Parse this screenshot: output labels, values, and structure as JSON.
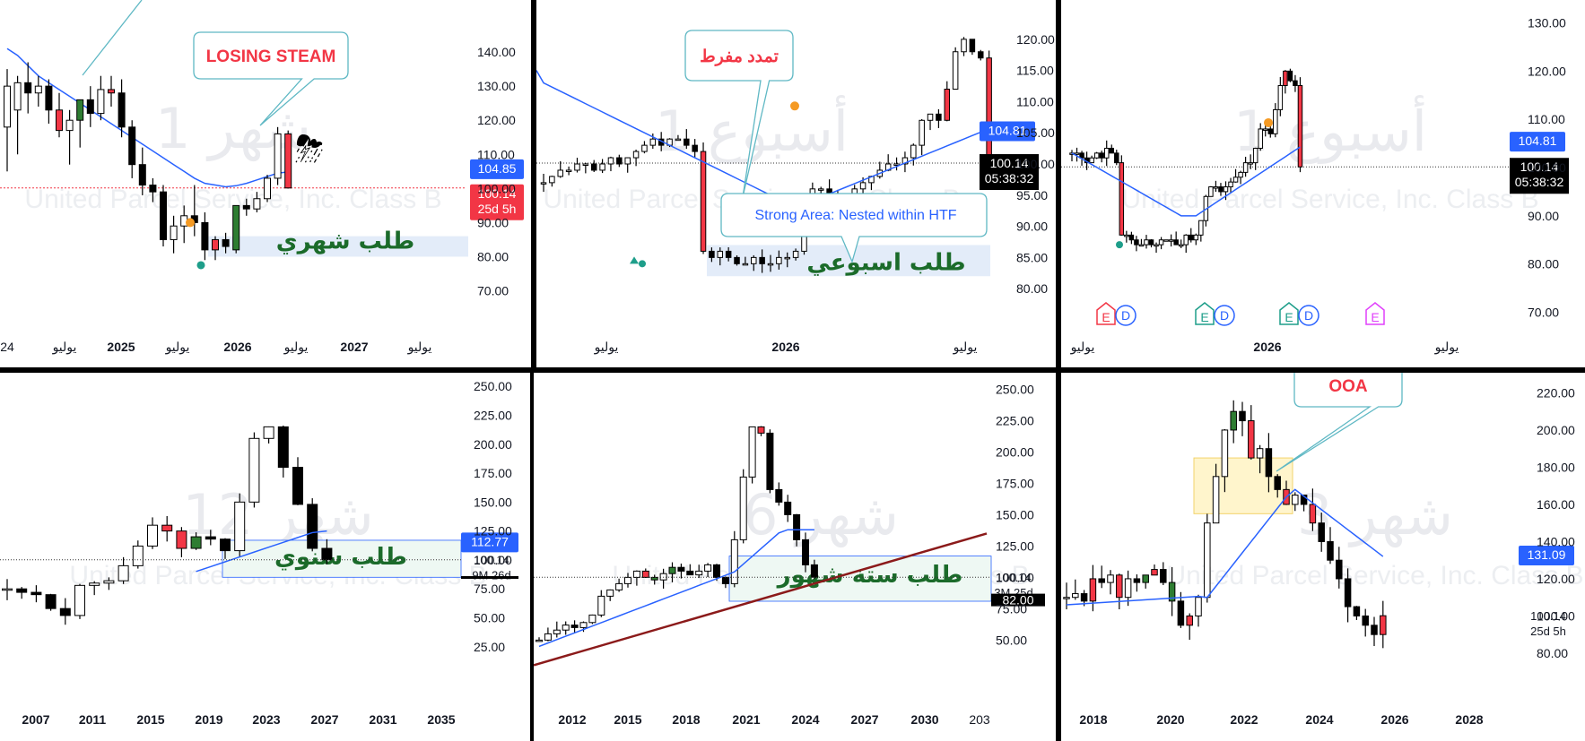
{
  "watermark": {
    "symbol_text": "United Parcel Service, Inc. Class B"
  },
  "colors": {
    "up": "#ffffff",
    "down": "#000000",
    "bull_highlight": "#2e7d32",
    "bear_highlight": "#f23645",
    "ma": "#2962ff",
    "zone_fill": "#e3ecf9",
    "trendline": "#8b1a1a",
    "price_red": "#f23645",
    "price_blue": "#2962ff"
  },
  "chart_data": [
    {
      "type": "candlestick",
      "panel": "top-left",
      "watermark_interval": "شهر 1",
      "ylim": [
        62,
        150
      ],
      "y_ticks": [
        "140.00",
        "130.00",
        "120.00",
        "110.00",
        "100.00",
        "90.00",
        "80.00",
        "70.00"
      ],
      "x_ticks": [
        "24",
        "يوليو",
        "2025",
        "يوليو",
        "2026",
        "يوليو",
        "2027",
        "يوليو"
      ],
      "candles": [
        {
          "o": 118,
          "h": 135,
          "l": 105,
          "c": 130
        },
        {
          "o": 123,
          "h": 133,
          "l": 110,
          "c": 131
        },
        {
          "o": 131,
          "h": 137,
          "l": 122,
          "c": 128
        },
        {
          "o": 128,
          "h": 133,
          "l": 124,
          "c": 130
        },
        {
          "o": 130,
          "h": 132,
          "l": 119,
          "c": 123
        },
        {
          "o": 123,
          "h": 128,
          "l": 115,
          "c": 117
        },
        {
          "o": 117,
          "h": 123,
          "l": 107,
          "c": 120
        },
        {
          "o": 120,
          "h": 126,
          "l": 112,
          "c": 126
        },
        {
          "o": 126,
          "h": 130,
          "l": 118,
          "c": 122
        },
        {
          "o": 122,
          "h": 133,
          "l": 120,
          "c": 129
        },
        {
          "o": 129,
          "h": 133,
          "l": 124,
          "c": 128
        },
        {
          "o": 128,
          "h": 132,
          "l": 115,
          "c": 118
        },
        {
          "o": 118,
          "h": 120,
          "l": 103,
          "c": 107
        },
        {
          "o": 107,
          "h": 112,
          "l": 98,
          "c": 101
        },
        {
          "o": 101,
          "h": 103,
          "l": 96,
          "c": 99
        },
        {
          "o": 99,
          "h": 101,
          "l": 83,
          "c": 85
        },
        {
          "o": 85,
          "h": 92,
          "l": 81,
          "c": 89
        },
        {
          "o": 89,
          "h": 95,
          "l": 84,
          "c": 92
        },
        {
          "o": 92,
          "h": 101,
          "l": 86,
          "c": 90
        },
        {
          "o": 90,
          "h": 93,
          "l": 79,
          "c": 82
        },
        {
          "o": 82,
          "h": 86,
          "l": 79,
          "c": 85
        },
        {
          "o": 85,
          "h": 87,
          "l": 81,
          "c": 83
        },
        {
          "o": 82,
          "h": 95,
          "l": 81,
          "c": 95
        },
        {
          "o": 95,
          "h": 97,
          "l": 92,
          "c": 94
        },
        {
          "o": 94,
          "h": 99,
          "l": 93,
          "c": 97
        },
        {
          "o": 97,
          "h": 104,
          "l": 96,
          "c": 103
        },
        {
          "o": 103,
          "h": 118,
          "l": 101,
          "c": 116
        },
        {
          "o": 116,
          "h": 117,
          "l": 100,
          "c": 100.14
        }
      ],
      "highlight_down": [
        5,
        10,
        20,
        27
      ],
      "highlight_up": [
        7,
        22
      ],
      "ma": [
        141,
        139,
        136,
        133,
        131,
        129,
        127,
        125,
        123,
        121,
        119,
        117,
        115,
        113,
        111,
        109,
        107,
        105,
        103,
        101.5,
        101,
        100.5,
        100.8,
        101.5,
        102.5,
        103.5,
        104.5,
        104.85
      ],
      "current_price": "100.14",
      "countdown": "25d 5h",
      "ma_value": "104.85",
      "callout": "LOSING STEAM",
      "zone_label": "طلب شهري",
      "zone": [
        80,
        86
      ]
    },
    {
      "type": "candlestick",
      "panel": "top-middle",
      "watermark_interval": "أسبوع 1",
      "ylim": [
        76,
        124
      ],
      "y_ticks": [
        "120.00",
        "115.00",
        "110.00",
        "105.00",
        "100.00",
        "95.00",
        "90.00",
        "85.00",
        "80.00"
      ],
      "x_ticks": [
        "يوليو",
        "2026",
        "يوليو"
      ],
      "current_price": "100.14",
      "countdown": "05:38:32",
      "ma_value": "104.81",
      "callout": "تمدد مفرط",
      "callout2": "Strong Area: Nested within HTF",
      "zone_label": "طلب اسبوعي",
      "zone": [
        82,
        87
      ]
    },
    {
      "type": "candlestick",
      "panel": "top-right",
      "watermark_interval": "أسبوع 1",
      "ylim": [
        66,
        134
      ],
      "y_ticks": [
        "130.00",
        "120.00",
        "110.00",
        "100.00",
        "90.00",
        "80.00",
        "70.00"
      ],
      "x_ticks": [
        "يوليو",
        "2026",
        "يوليو"
      ],
      "current_price": "100.14",
      "countdown": "05:38:32",
      "ma_value": "104.81",
      "earnings_badges": [
        "E",
        "D",
        "E",
        "D",
        "E",
        "D",
        "E"
      ]
    },
    {
      "type": "candlestick",
      "panel": "bottom-left",
      "watermark_interval": "شهر 12",
      "ylim": [
        14,
        254
      ],
      "y_ticks": [
        "250.00",
        "225.00",
        "200.00",
        "175.00",
        "150.00",
        "125.00",
        "100.00",
        "75.00",
        "50.00",
        "25.00"
      ],
      "x_ticks": [
        "2007",
        "2011",
        "2015",
        "2019",
        "2023",
        "2027",
        "2031",
        "2035"
      ],
      "current_price": "100.14",
      "countdown": "9M 26d",
      "ma_value": "112.77",
      "zone_label": "طلب سنوي",
      "zone": [
        85,
        117
      ]
    },
    {
      "type": "candlestick",
      "panel": "bottom-middle",
      "watermark_interval": "شهر 6",
      "ylim": [
        36,
        256
      ],
      "y_ticks": [
        "250.00",
        "225.00",
        "200.00",
        "175.00",
        "150.00",
        "125.00",
        "100.00",
        "75.00",
        "50.00"
      ],
      "x_ticks": [
        "2012",
        "2015",
        "2018",
        "2021",
        "2024",
        "2027",
        "2030",
        "203"
      ],
      "current_price": "100.14",
      "countdown": "3M 25d",
      "level_label": "82.00",
      "zone_label": "طلب ستة شهور",
      "zone": [
        81,
        117
      ]
    },
    {
      "type": "candlestick",
      "panel": "bottom-right",
      "watermark_interval": "شهر 3",
      "ylim": [
        66,
        226
      ],
      "y_ticks": [
        "220.00",
        "200.00",
        "180.00",
        "160.00",
        "140.00",
        "120.00",
        "100.00",
        "80.00"
      ],
      "x_ticks": [
        "2018",
        "2020",
        "2022",
        "2024",
        "2026",
        "2028"
      ],
      "current_price": "100.14",
      "countdown": "25d 5h",
      "ma_value": "131.09",
      "callout": "OOA"
    }
  ]
}
